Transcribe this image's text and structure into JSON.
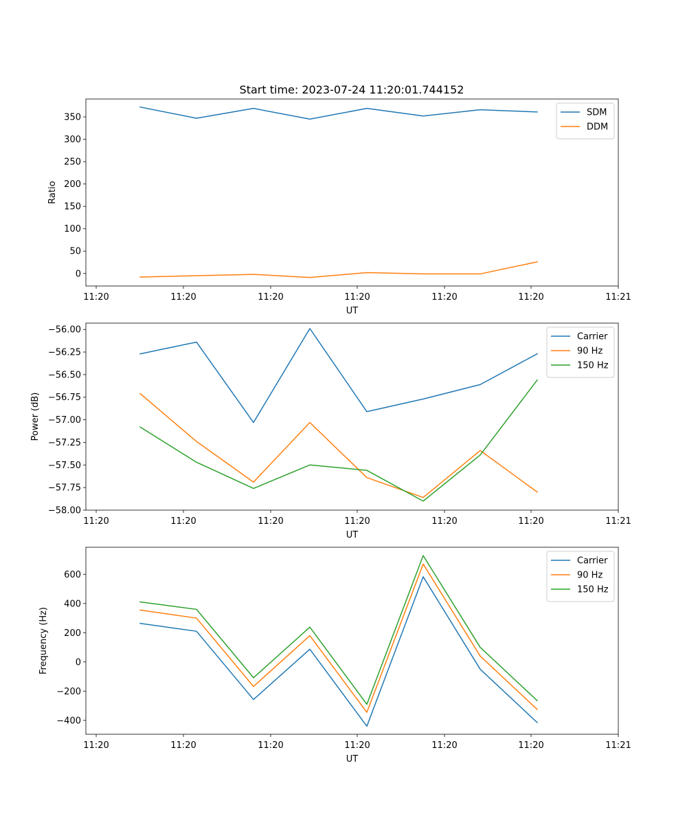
{
  "title": "Start time: 2023-07-24 11:20:01.744152",
  "chart_data": [
    {
      "type": "line",
      "title": "Start time: 2023-07-24 11:20:01.744152",
      "xlabel": "UT",
      "ylabel": "Ratio",
      "x_tick_labels": [
        "11:20",
        "11:20",
        "11:20",
        "11:20",
        "11:20",
        "11:20",
        "11:21"
      ],
      "y_ticks": [
        0,
        50,
        100,
        150,
        200,
        250,
        300,
        350
      ],
      "y_tick_labels": [
        "0",
        "50",
        "100",
        "150",
        "200",
        "250",
        "300",
        "350"
      ],
      "ylim": [
        -28,
        390
      ],
      "legend_position": "upper right",
      "series": [
        {
          "name": "SDM",
          "color": "#1f77b4",
          "values": [
            372,
            347,
            369,
            345,
            369,
            352,
            366,
            361
          ]
        },
        {
          "name": "DDM",
          "color": "#ff7f0e",
          "values": [
            -8,
            -5,
            -2,
            -9,
            2,
            -1,
            -1,
            26
          ]
        }
      ]
    },
    {
      "type": "line",
      "title": "",
      "xlabel": "UT",
      "ylabel": "Power (dB)",
      "x_tick_labels": [
        "11:20",
        "11:20",
        "11:20",
        "11:20",
        "11:20",
        "11:20",
        "11:21"
      ],
      "y_ticks": [
        -58.0,
        -57.75,
        -57.5,
        -57.25,
        -57.0,
        -56.75,
        -56.5,
        -56.25,
        -56.0
      ],
      "y_tick_labels": [
        "−58.00",
        "−57.75",
        "−57.50",
        "−57.25",
        "−57.00",
        "−56.75",
        "−56.50",
        "−56.25",
        "−56.00"
      ],
      "ylim": [
        -58.0,
        -55.93
      ],
      "legend_position": "upper right",
      "series": [
        {
          "name": "Carrier",
          "color": "#1f77b4",
          "values": [
            -56.27,
            -56.14,
            -57.03,
            -55.99,
            -56.91,
            -56.77,
            -56.61,
            -56.27
          ]
        },
        {
          "name": "90 Hz",
          "color": "#ff7f0e",
          "values": [
            -56.71,
            -57.24,
            -57.69,
            -57.03,
            -57.64,
            -57.86,
            -57.34,
            -57.8
          ]
        },
        {
          "name": "150 Hz",
          "color": "#2ca02c",
          "values": [
            -57.08,
            -57.47,
            -57.76,
            -57.5,
            -57.56,
            -57.9,
            -57.39,
            -56.56
          ]
        }
      ]
    },
    {
      "type": "line",
      "title": "",
      "xlabel": "UT",
      "ylabel": "Frequency (Hz)",
      "x_tick_labels": [
        "11:20",
        "11:20",
        "11:20",
        "11:20",
        "11:20",
        "11:20",
        "11:21"
      ],
      "y_ticks": [
        -400,
        -200,
        0,
        200,
        400,
        600
      ],
      "y_tick_labels": [
        "−400",
        "−200",
        "0",
        "200",
        "400",
        "600"
      ],
      "ylim": [
        -495,
        785
      ],
      "legend_position": "upper right",
      "series": [
        {
          "name": "Carrier",
          "color": "#1f77b4",
          "values": [
            264,
            210,
            -257,
            87,
            -440,
            583,
            -50,
            -415
          ]
        },
        {
          "name": "90 Hz",
          "color": "#ff7f0e",
          "values": [
            355,
            300,
            -168,
            180,
            -345,
            670,
            40,
            -325
          ]
        },
        {
          "name": "150 Hz",
          "color": "#2ca02c",
          "values": [
            411,
            360,
            -108,
            238,
            -290,
            728,
            100,
            -265
          ]
        }
      ]
    }
  ]
}
